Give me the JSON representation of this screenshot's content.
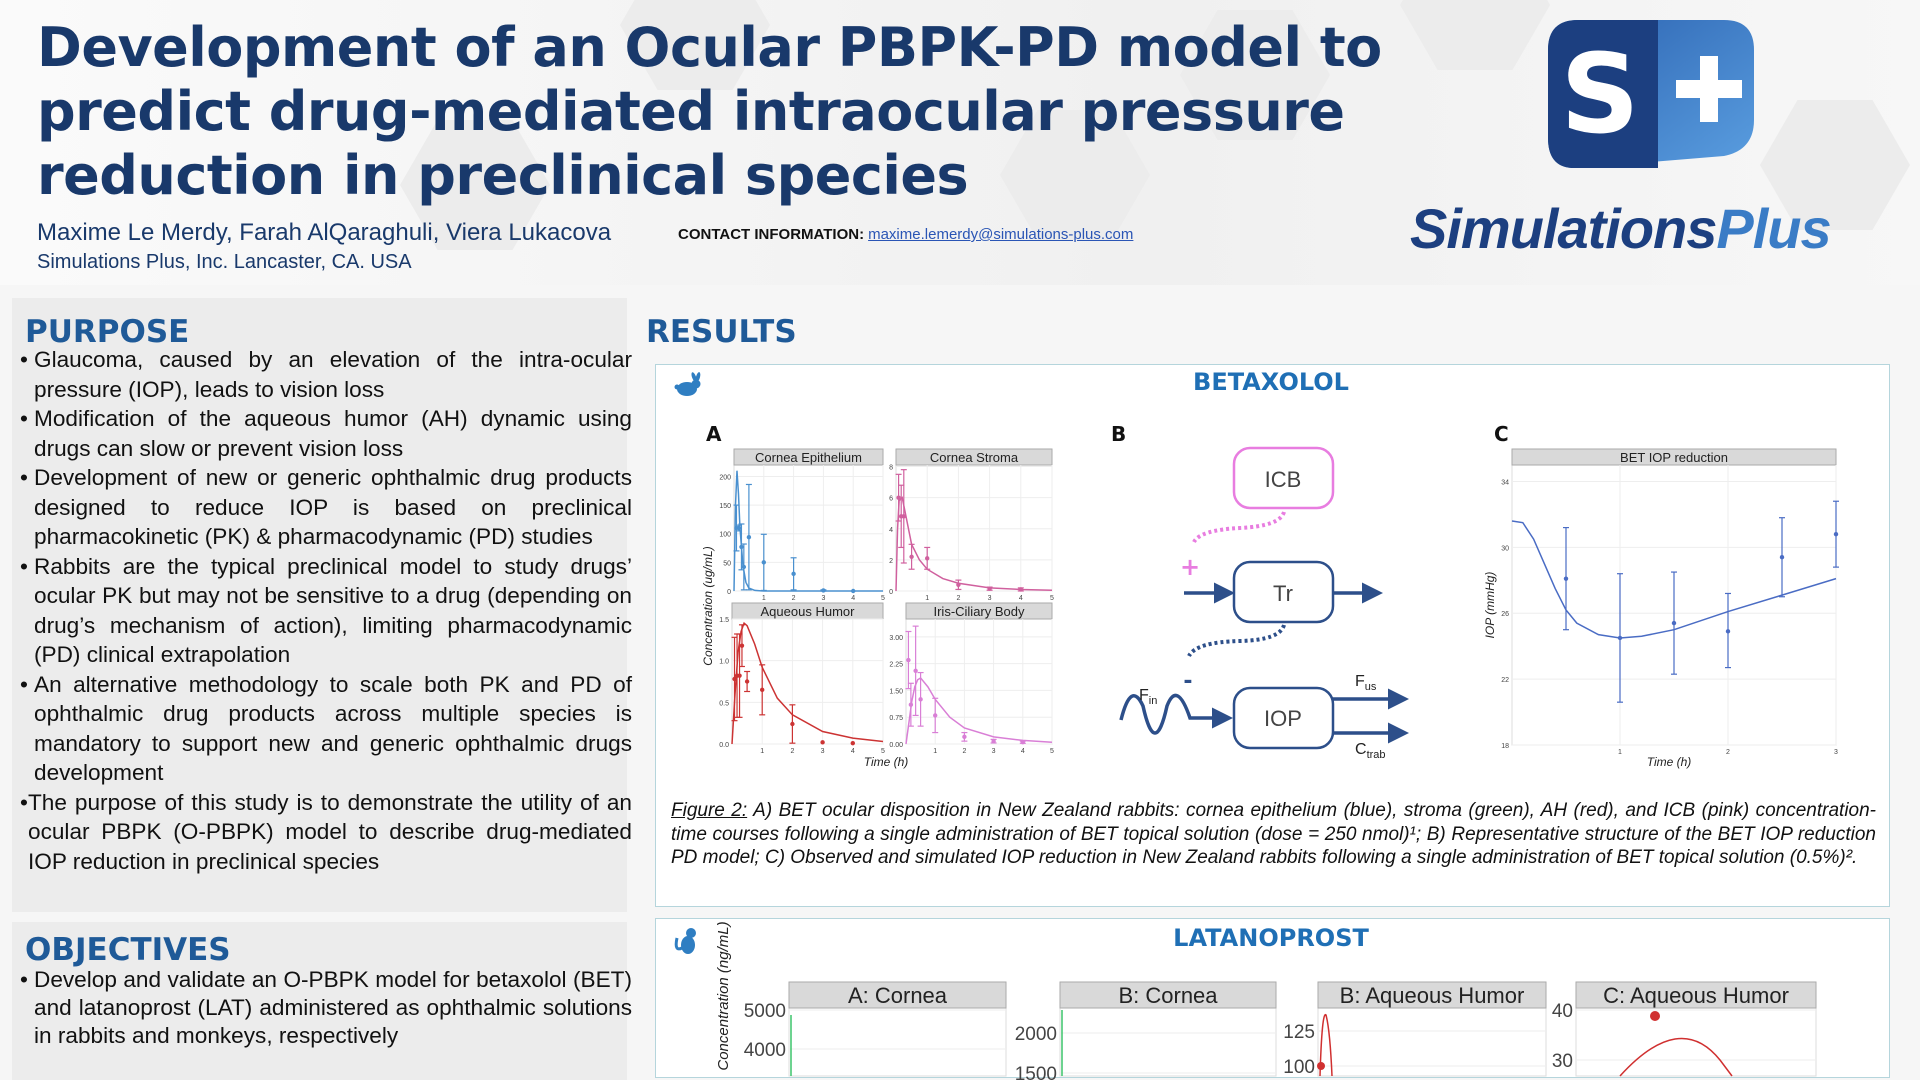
{
  "header": {
    "title": "Development of an Ocular PBPK-PD model to predict drug-mediated intraocular pressure reduction in preclinical species",
    "authors": "Maxime Le Merdy, Farah AlQaraghuli, Viera Lukacova",
    "contact_label": "CONTACT INFORMATION:",
    "contact_email": "maxime.lemerdy@simulations-plus.com",
    "affiliation": "Simulations Plus, Inc. Lancaster, CA. USA"
  },
  "logo": {
    "mark": "S+",
    "wordmark_a": "Simulations",
    "wordmark_b": "Plus",
    "colors": {
      "navy": "#1c3f80",
      "blue": "#3a7cc6"
    }
  },
  "purpose": {
    "heading": "PURPOSE",
    "items": [
      "Glaucoma, caused by an elevation of the intra-ocular pressure (IOP), leads to vision loss",
      "Modification of the aqueous humor (AH) dynamic using drugs can slow or prevent vision loss",
      "Development of new or generic ophthalmic drug products designed to reduce IOP is based on preclinical pharmacokinetic (PK) & pharmacodynamic (PD) studies",
      "Rabbits are the typical preclinical model to study drugs’ ocular PK but may not be sensitive to a drug (depending on drug’s mechanism of action), limiting pharmacodynamic (PD) clinical extrapolation",
      "An alternative methodology to scale both PK and PD of ophthalmic drug products across multiple species is mandatory to support new and generic ophthalmic drugs development",
      "The purpose of this study is to demonstrate the utility of an ocular PBPK (O-PBPK) model to describe drug-mediated IOP reduction in preclinical species"
    ]
  },
  "objectives": {
    "heading": "OBJECTIVES",
    "items": [
      "Develop and validate an O-PBPK model for betaxolol (BET) and latanoprost (LAT) administered as ophthalmic solutions in rabbits and monkeys, respectively"
    ]
  },
  "results": {
    "heading": "RESULTS",
    "betaxolol": {
      "title": "BETAXOLOL",
      "icon": "rabbit-icon",
      "panel_labels": [
        "A",
        "B",
        "C"
      ],
      "diagram": {
        "icb": "ICB",
        "tr": "Tr",
        "iop": "IOP",
        "plus": "+",
        "minus": "-",
        "fin": "F",
        "fin_sub": "in",
        "fus": "F",
        "fus_sub": "us",
        "ctrab": "C",
        "ctrab_sub": "trab",
        "colors": {
          "pink": "#e87de0",
          "navy": "#2d4f8a"
        }
      },
      "caption_label": "Figure 2:",
      "caption": "A) BET ocular disposition in New Zealand rabbits: cornea epithelium (blue), stroma (green), AH (red), and ICB (pink) concentration-time courses following a single administration of BET topical solution (dose = 250 nmol)¹; B) Representative structure of the BET IOP reduction PD model; C) Observed and simulated IOP reduction in New Zealand rabbits following a single administration of BET topical solution (0.5%)²."
    },
    "latanoprost": {
      "title": "LATANOPROST",
      "icon": "monkey-icon"
    }
  },
  "chart_data": [
    {
      "id": "ce",
      "type": "line",
      "title": "Cornea Epithelium",
      "color": "#4a90cf",
      "xlim": [
        0,
        5
      ],
      "ylim": [
        0,
        220
      ],
      "xticks": [
        1,
        2,
        3,
        4,
        5
      ],
      "yticks": [
        0,
        50,
        100,
        150,
        200
      ],
      "ytick_labels": [
        "0",
        "50",
        "100",
        "150",
        "200"
      ],
      "observed": {
        "x": [
          0.083,
          0.167,
          0.25,
          0.33,
          0.5,
          1,
          2,
          3,
          4
        ],
        "y": [
          110,
          110,
          77,
          42,
          94,
          50,
          30,
          1,
          0
        ],
        "err": [
          40,
          5,
          40,
          40,
          92,
          49,
          28,
          1,
          0
        ]
      },
      "simulated": {
        "x": [
          0,
          0.05,
          0.1,
          0.15,
          0.2,
          0.3,
          0.4,
          0.5,
          0.7,
          1,
          5
        ],
        "y": [
          0,
          150,
          210,
          170,
          110,
          45,
          15,
          5,
          1,
          0,
          0
        ]
      }
    },
    {
      "id": "cs",
      "type": "line",
      "title": "Cornea Stroma",
      "color": "#d0609e",
      "xlim": [
        0,
        5
      ],
      "ylim": [
        0,
        8.1
      ],
      "xticks": [
        1,
        2,
        3,
        4,
        5
      ],
      "yticks": [
        0,
        2,
        4,
        6,
        8
      ],
      "ytick_labels": [
        "0",
        "2",
        "4",
        "6",
        "8"
      ],
      "observed": {
        "x": [
          0.083,
          0.167,
          0.25,
          0.5,
          1,
          2,
          3,
          4
        ],
        "y": [
          6,
          4.8,
          4.8,
          2.2,
          2.1,
          0.4,
          0.15,
          0.1
        ],
        "err": [
          1.5,
          2,
          3,
          0.8,
          0.7,
          0.3,
          0.1,
          0.1
        ]
      },
      "simulated": {
        "x": [
          0,
          0.05,
          0.1,
          0.2,
          0.3,
          0.5,
          0.75,
          1,
          1.5,
          2,
          3,
          4,
          5
        ],
        "y": [
          0,
          4,
          5.8,
          6,
          5,
          3,
          2,
          1.4,
          0.8,
          0.5,
          0.2,
          0.1,
          0.05
        ]
      }
    },
    {
      "id": "ah",
      "type": "line",
      "title": "Aqueous Humor",
      "color": "#cc3333",
      "xlim": [
        0,
        5
      ],
      "ylim": [
        0,
        1.5
      ],
      "xticks": [
        1,
        2,
        3,
        4,
        5
      ],
      "yticks": [
        0,
        0.5,
        1,
        1.5
      ],
      "ytick_labels": [
        "0.0",
        "0.5",
        "1.0",
        "1.5"
      ],
      "observed": {
        "x": [
          0.083,
          0.167,
          0.25,
          0.33,
          0.5,
          1,
          2,
          3,
          4
        ],
        "y": [
          0.78,
          0.82,
          0.82,
          1.18,
          0.75,
          0.65,
          0.24,
          0.02,
          0.01
        ],
        "err": [
          0.5,
          0.5,
          0.5,
          0.25,
          0.12,
          0.3,
          0.23,
          0,
          0
        ]
      },
      "simulated": {
        "x": [
          0,
          0.1,
          0.2,
          0.3,
          0.4,
          0.5,
          0.75,
          1,
          1.5,
          2,
          3,
          4,
          5
        ],
        "y": [
          0,
          0.6,
          1.1,
          1.35,
          1.45,
          1.42,
          1.2,
          0.92,
          0.55,
          0.35,
          0.15,
          0.07,
          0.03
        ]
      }
    },
    {
      "id": "icb",
      "type": "line",
      "title": "Iris-Ciliary Body",
      "color": "#d97fd6",
      "xlim": [
        0,
        5
      ],
      "ylim": [
        0,
        3.5
      ],
      "xticks": [
        1,
        2,
        3,
        4,
        5
      ],
      "yticks": [
        0,
        0.75,
        1.5,
        2.25,
        3
      ],
      "ytick_labels": [
        "0.00",
        "0.75",
        "1.50",
        "2.25",
        "3.00"
      ],
      "observed": {
        "x": [
          0.083,
          0.167,
          0.33,
          0.5,
          1,
          2,
          3,
          4
        ],
        "y": [
          2.35,
          1.1,
          2.05,
          1.25,
          0.8,
          0.2,
          0.08,
          0.05
        ],
        "err": [
          0.8,
          0.6,
          1.25,
          0.75,
          0.48,
          0.12,
          0.05,
          0.03
        ]
      },
      "simulated": {
        "x": [
          0,
          0.1,
          0.2,
          0.3,
          0.4,
          0.5,
          0.75,
          1,
          1.5,
          2,
          3,
          4,
          5
        ],
        "y": [
          0,
          0.6,
          1.2,
          1.6,
          1.8,
          1.85,
          1.6,
          1.25,
          0.75,
          0.45,
          0.2,
          0.1,
          0.05
        ]
      }
    },
    {
      "id": "pk_axes",
      "xlabel": "Time (h)",
      "ylabel": "Concentration (ug/mL)"
    },
    {
      "id": "iop",
      "type": "line",
      "title": "BET IOP reduction",
      "color": "#4a6cc4",
      "xlim": [
        0,
        3
      ],
      "ylim": [
        18,
        35
      ],
      "xlabel": "Time (h)",
      "ylabel": "IOP (mmHg)",
      "xticks": [
        1,
        2,
        3
      ],
      "yticks": [
        18,
        22,
        26,
        30,
        34
      ],
      "ytick_labels": [
        "18",
        "22",
        "26",
        "30",
        "34"
      ],
      "observed": {
        "x": [
          0.5,
          1,
          1.5,
          2,
          2.5,
          3
        ],
        "y": [
          28.1,
          24.5,
          25.4,
          24.9,
          29.4,
          30.8
        ],
        "lo": [
          25,
          20.6,
          22.3,
          22.7,
          27,
          28.8
        ],
        "hi": [
          31.2,
          28.4,
          28.5,
          27.2,
          31.8,
          32.8
        ]
      },
      "simulated": {
        "x": [
          0,
          0.1,
          0.2,
          0.3,
          0.4,
          0.5,
          0.6,
          0.8,
          1,
          1.2,
          1.5,
          2,
          2.5,
          3
        ],
        "y": [
          31.6,
          31.5,
          30.5,
          29,
          27.5,
          26.2,
          25.4,
          24.7,
          24.5,
          24.6,
          25,
          26.1,
          27.1,
          28.1
        ]
      }
    },
    {
      "id": "lat_a_cornea",
      "type": "line",
      "title": "A: Cornea",
      "color": "#3cc46a",
      "yticks": [
        4000,
        5000
      ],
      "ytick_labels": [
        "4000",
        "5000"
      ]
    },
    {
      "id": "lat_b_cornea",
      "type": "line",
      "title": "B: Cornea",
      "color": "#3cc46a",
      "yticks": [
        1500,
        2000
      ],
      "ytick_labels": [
        "1500",
        "2000"
      ]
    },
    {
      "id": "lat_b_ah",
      "type": "line",
      "title": "B: Aqueous Humor",
      "color": "#d03030",
      "yticks": [
        100,
        125
      ],
      "ytick_labels": [
        "100",
        "125"
      ]
    },
    {
      "id": "lat_c_ah",
      "type": "line",
      "title": "C: Aqueous Humor",
      "color": "#d03030",
      "yticks": [
        30,
        40
      ],
      "ytick_labels": [
        "30",
        "40"
      ]
    },
    {
      "id": "lat_axes",
      "ylabel": "Concentration (ng/mL)"
    }
  ]
}
